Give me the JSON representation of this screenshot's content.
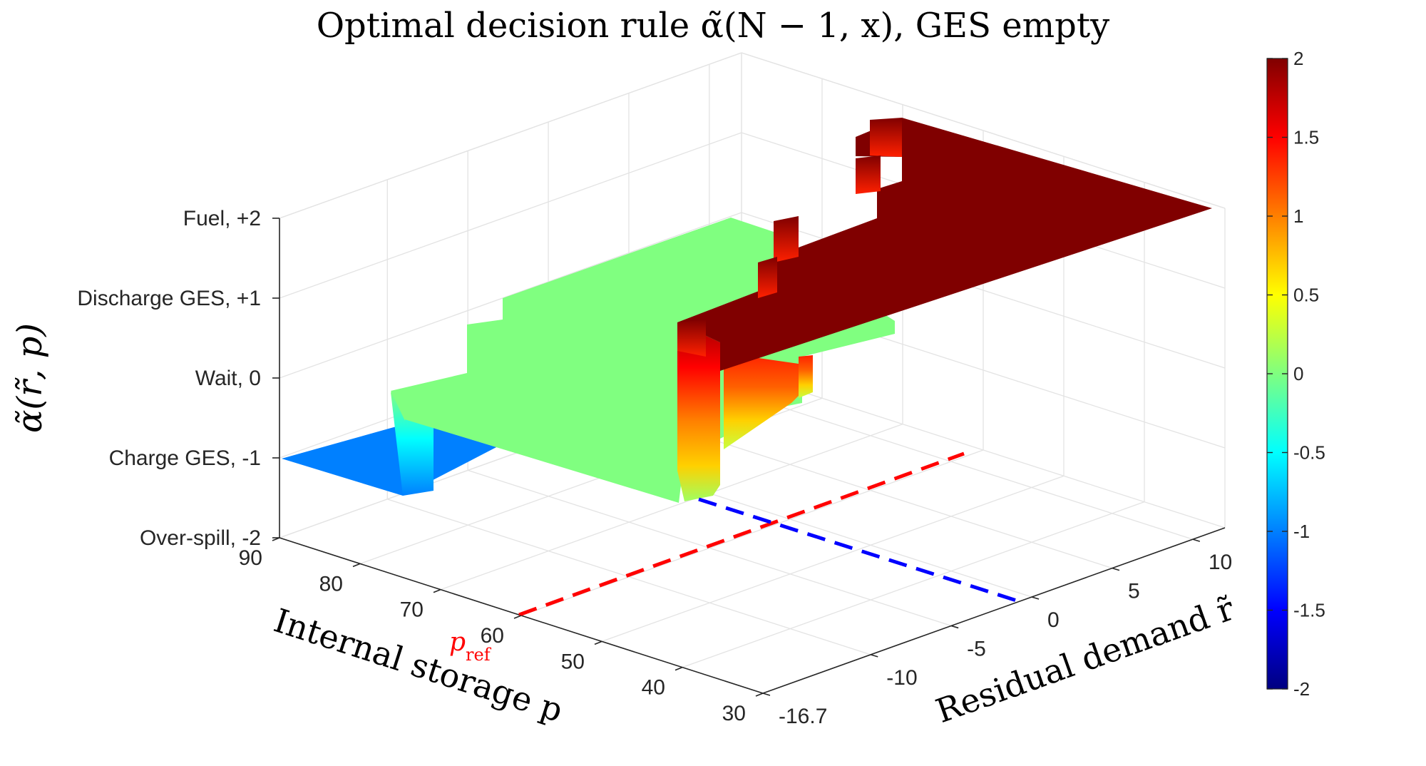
{
  "chart_data": {
    "type": "surface3d",
    "title": "Optimal decision rule α̃(N − 1, x),  GES empty",
    "zlabel": "α̃(r̃, p)",
    "xlabel": "Residual demand r̃",
    "ylabel": "Internal storage p",
    "ztick_labels": [
      "Fuel, +2",
      "Discharge GES, +1",
      "Wait,  0",
      "Charge GES, -1",
      "Over-spill, -2"
    ],
    "zticks": [
      2,
      1,
      0,
      -1,
      -2
    ],
    "zlim": [
      -2,
      2
    ],
    "p_ticks": [
      "90",
      "80",
      "70",
      "60",
      "50",
      "40",
      "30"
    ],
    "p_values": [
      90,
      80,
      70,
      60,
      50,
      40,
      30
    ],
    "r_ticks": [
      "-16.7",
      "-10",
      "-5",
      "0",
      "5",
      "10"
    ],
    "r_values": [
      -16.7,
      -10,
      -5,
      0,
      5,
      10
    ],
    "xlim": [
      -16.7,
      12
    ],
    "ylim": [
      30,
      90
    ],
    "colorbar": {
      "ticks": [
        "2",
        "1.5",
        "1",
        "0.5",
        "0",
        "-0.5",
        "-1",
        "-1.5",
        "-2"
      ],
      "values": [
        2,
        1.5,
        1,
        0.5,
        0,
        -0.5,
        -1,
        -1.5,
        -2
      ],
      "colormap": "jet"
    },
    "regions": [
      {
        "name": "Charge GES",
        "value": -1,
        "color": "#0080ff"
      },
      {
        "name": "Wait",
        "value": 0,
        "color": "#80ff80"
      },
      {
        "name": "Fuel",
        "value": 2,
        "color": "#800000"
      }
    ],
    "reference_lines": [
      {
        "name": "p_ref",
        "label_base": "p",
        "label_sub": "ref",
        "value": 60,
        "color": "#ff0000",
        "style": "dashed"
      },
      {
        "name": "r_zero",
        "value": 0,
        "color": "#0000ff",
        "style": "dashed"
      }
    ],
    "grid": true
  }
}
